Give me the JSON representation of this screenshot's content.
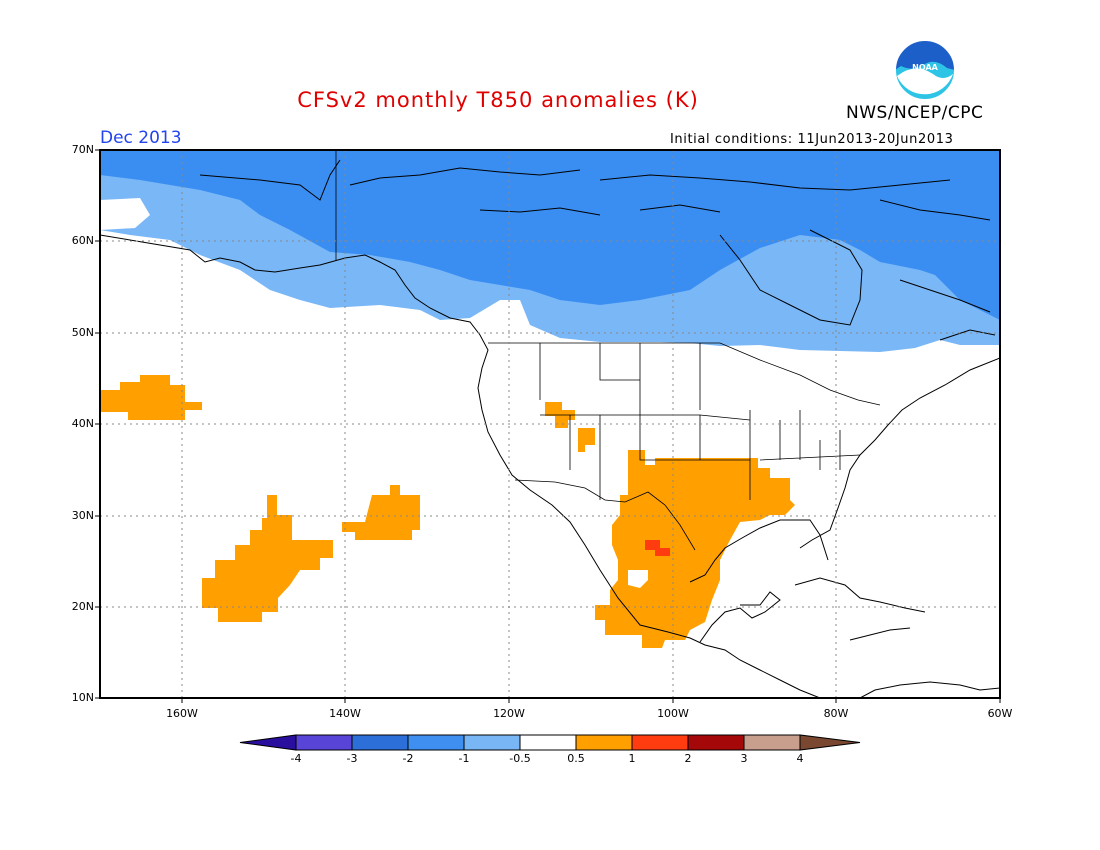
{
  "header": {
    "title": "CFSv2 monthly T850 anomalies (K)",
    "agency": "NWS/NCEP/CPC",
    "logo_text": "NOAA",
    "valid_month": "Dec 2013",
    "initial_conditions": "Initial conditions: 11Jun2013-20Jun2013"
  },
  "axes": {
    "lat_labels": [
      "70N",
      "60N",
      "50N",
      "40N",
      "30N",
      "20N",
      "10N"
    ],
    "lon_labels": [
      "160W",
      "140W",
      "120W",
      "100W",
      "80W",
      "60W"
    ]
  },
  "colorbar": {
    "tick_labels": [
      "-4",
      "-3",
      "-2",
      "-1",
      "-0.5",
      "0.5",
      "1",
      "2",
      "3",
      "4"
    ],
    "colors": [
      "#2a0f9e",
      "#5844d6",
      "#2d6fd8",
      "#3f8ff0",
      "#78b6f5",
      "#ffffff",
      "#ff9f00",
      "#ff3b10",
      "#a40808",
      "#c89e8c",
      "#7a4830"
    ]
  },
  "anomaly_colors": {
    "cold_1": "#3a8ef2",
    "cold_05": "#7ab7f6",
    "warm_05": "#ffa000",
    "warm_1": "#ff3c10"
  }
}
